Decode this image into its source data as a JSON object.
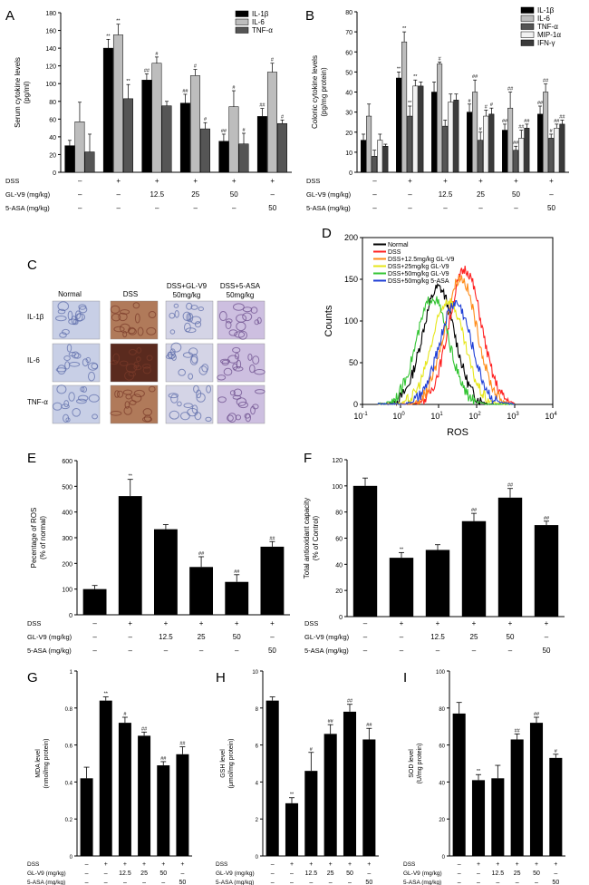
{
  "colors": {
    "black": "#000000",
    "white": "#ffffff",
    "bar_IL1b": "#000000",
    "bar_IL6": "#bdbdbd",
    "bar_TNF": "#555555",
    "bar_MIP": "#f2f2f2",
    "bar_IFN": "#3a3a3a",
    "flow_normal": "#000000",
    "flow_dss": "#ff2020",
    "flow_gl125": "#ff8c1a",
    "flow_gl25": "#e6e619",
    "flow_gl50": "#33c433",
    "flow_asa": "#1f3fd6",
    "ihc_stain_blue": "#5a6aa8",
    "ihc_stain_brown": "#7a3a2a",
    "ihc_stain_purple": "#6a4a8a"
  },
  "treatment_table": {
    "row_labels": [
      "DSS",
      "GL-V9 (mg/kg)",
      "5-ASA (mg/kg)"
    ],
    "dss": [
      "–",
      "+",
      "+",
      "+",
      "+",
      "+"
    ],
    "glv9": [
      "–",
      "–",
      "12.5",
      "25",
      "50",
      "–"
    ],
    "asa": [
      "–",
      "–",
      "–",
      "–",
      "–",
      "50"
    ]
  },
  "chart_data": [
    {
      "id": "A",
      "type": "bar",
      "ylabel": "Serum cytokine levels (pg/ml)",
      "ylim": [
        0,
        180
      ],
      "yticks": [
        0,
        20,
        40,
        60,
        80,
        100,
        120,
        140,
        160,
        180
      ],
      "categories": [
        "Normal",
        "DSS",
        "GL-V9 12.5",
        "GL-V9 25",
        "GL-V9 50",
        "5-ASA 50"
      ],
      "series": [
        {
          "name": "IL-1β",
          "color": "#000000",
          "values": [
            30,
            140,
            104,
            78,
            35,
            63
          ],
          "errors": [
            6,
            10,
            7,
            10,
            8,
            9
          ],
          "sig": [
            "",
            "**",
            "##",
            "##",
            "##",
            "##"
          ]
        },
        {
          "name": "IL-6",
          "color": "#bdbdbd",
          "values": [
            57,
            155,
            123,
            109,
            74,
            113
          ],
          "errors": [
            22,
            12,
            7,
            7,
            18,
            10
          ],
          "sig": [
            "",
            "**",
            "#",
            "#",
            "#",
            "#"
          ]
        },
        {
          "name": "TNF-α",
          "color": "#555555",
          "values": [
            23,
            83,
            75,
            49,
            32,
            55
          ],
          "errors": [
            20,
            16,
            5,
            7,
            12,
            4
          ],
          "sig": [
            "",
            "**",
            "",
            "#",
            "#",
            "#"
          ]
        }
      ]
    },
    {
      "id": "B",
      "type": "bar",
      "ylabel": "Colonic cytokine levels (pg/mg protein)",
      "ylim": [
        0,
        80
      ],
      "yticks": [
        0,
        10,
        20,
        30,
        40,
        50,
        60,
        70,
        80
      ],
      "categories": [
        "Normal",
        "DSS",
        "GL-V9 12.5",
        "GL-V9 25",
        "GL-V9 50",
        "5-ASA 50"
      ],
      "series": [
        {
          "name": "IL-1β",
          "color": "#000000",
          "values": [
            16,
            47,
            40,
            30,
            21,
            29
          ],
          "errors": [
            3,
            3,
            5,
            4,
            3,
            4
          ],
          "sig": [
            "",
            "**",
            "",
            "#",
            "##",
            "##"
          ]
        },
        {
          "name": "IL-6",
          "color": "#bdbdbd",
          "values": [
            28,
            65,
            54,
            40,
            32,
            40
          ],
          "errors": [
            6,
            5,
            1,
            6,
            8,
            4
          ],
          "sig": [
            "",
            "**",
            "#",
            "##",
            "##",
            "##"
          ]
        },
        {
          "name": "TNF-α",
          "color": "#555555",
          "values": [
            8,
            28,
            23,
            16,
            11,
            17
          ],
          "errors": [
            3,
            5,
            3,
            4,
            2,
            2
          ],
          "sig": [
            "",
            "**",
            "",
            "#",
            "##",
            "#"
          ]
        },
        {
          "name": "MIP-1α",
          "color": "#f2f2f2",
          "values": [
            16,
            43,
            35,
            28,
            17,
            22
          ],
          "errors": [
            3,
            3,
            4,
            3,
            4,
            2
          ],
          "sig": [
            "",
            "**",
            "",
            "#",
            "##",
            "##"
          ]
        },
        {
          "name": "IFN-γ",
          "color": "#3a3a3a",
          "values": [
            13,
            43,
            36,
            29,
            22,
            24
          ],
          "errors": [
            1,
            2,
            3,
            3,
            2,
            2
          ],
          "sig": [
            "",
            "",
            "",
            "#",
            "##",
            "##"
          ]
        }
      ]
    },
    {
      "id": "D",
      "type": "line",
      "xlabel": "ROS",
      "ylabel": "Counts",
      "xscale": "log",
      "xlim": [
        0.1,
        10000
      ],
      "xticks_exp": [
        "-1",
        "0",
        "1",
        "2",
        "3",
        "4"
      ],
      "ylim": [
        0,
        200
      ],
      "yticks": [
        0,
        50,
        100,
        150,
        200
      ],
      "series": [
        {
          "name": "Normal",
          "color": "#000000",
          "peak_x": 10,
          "peak_y": 140
        },
        {
          "name": "DSS",
          "color": "#ff2020",
          "peak_x": 50,
          "peak_y": 162
        },
        {
          "name": "DSS+12.5mg/kg GL-V9",
          "color": "#ff8c1a",
          "peak_x": 38,
          "peak_y": 152
        },
        {
          "name": "DSS+25mg/kg GL-V9",
          "color": "#e6e619",
          "peak_x": 18,
          "peak_y": 125
        },
        {
          "name": "DSS+50mg/kg GL-V9",
          "color": "#33c433",
          "peak_x": 7,
          "peak_y": 128
        },
        {
          "name": "DSS+50mg/kg 5-ASA",
          "color": "#1f3fd6",
          "peak_x": 28,
          "peak_y": 122
        }
      ]
    },
    {
      "id": "E",
      "type": "bar",
      "ylabel": "Pecentage of ROS (% of normal)",
      "ylim": [
        0,
        600
      ],
      "yticks": [
        0,
        100,
        200,
        300,
        400,
        500,
        600
      ],
      "categories": [
        "Normal",
        "DSS",
        "GL-V9 12.5",
        "GL-V9 25",
        "GL-V9 50",
        "5-ASA 50"
      ],
      "values": [
        100,
        462,
        333,
        186,
        128,
        265
      ],
      "errors": [
        14,
        65,
        18,
        40,
        28,
        20
      ],
      "sig": [
        "",
        "**",
        "",
        "##",
        "##",
        "##"
      ]
    },
    {
      "id": "F",
      "type": "bar",
      "ylabel": "Total antioxidant capacity (% of Control)",
      "ylim": [
        0,
        120
      ],
      "yticks": [
        0,
        20,
        40,
        60,
        80,
        100,
        120
      ],
      "categories": [
        "Normal",
        "DSS",
        "GL-V9 12.5",
        "GL-V9 25",
        "GL-V9 50",
        "5-ASA 50"
      ],
      "values": [
        100,
        45,
        51,
        73,
        91,
        70
      ],
      "errors": [
        6,
        4,
        4,
        6,
        7,
        3
      ],
      "sig": [
        "",
        "**",
        "",
        "##",
        "##",
        "##"
      ]
    },
    {
      "id": "G",
      "type": "bar",
      "ylabel": "MDA level (nmol/mg protein)",
      "ylim": [
        0,
        1.0
      ],
      "yticks": [
        0,
        0.2,
        0.4,
        0.6,
        0.8,
        1.0
      ],
      "categories": [
        "Normal",
        "DSS",
        "GL-V9 12.5",
        "GL-V9 25",
        "GL-V9 50",
        "5-ASA 50"
      ],
      "values": [
        0.42,
        0.84,
        0.72,
        0.65,
        0.49,
        0.55
      ],
      "errors": [
        0.06,
        0.02,
        0.03,
        0.02,
        0.02,
        0.04
      ],
      "sig": [
        "",
        "**",
        "#",
        "##",
        "##",
        "##"
      ]
    },
    {
      "id": "H",
      "type": "bar",
      "ylabel": "GSH level (μmol/mg protein)",
      "ylim": [
        0,
        10
      ],
      "yticks": [
        0,
        2,
        4,
        6,
        8,
        10
      ],
      "categories": [
        "Normal",
        "DSS",
        "GL-V9 12.5",
        "GL-V9 25",
        "GL-V9 50",
        "5-ASA 50"
      ],
      "values": [
        8.4,
        2.85,
        4.6,
        6.6,
        7.8,
        6.3
      ],
      "errors": [
        0.2,
        0.3,
        1.0,
        0.5,
        0.4,
        0.6
      ],
      "sig": [
        "",
        "**",
        "#",
        "##",
        "##",
        "##"
      ]
    },
    {
      "id": "I",
      "type": "bar",
      "ylabel": "SOD level (U/mg protein)",
      "ylim": [
        0,
        100
      ],
      "yticks": [
        0,
        20,
        40,
        60,
        80,
        100
      ],
      "categories": [
        "Normal",
        "DSS",
        "GL-V9 12.5",
        "GL-V9 25",
        "GL-V9 50",
        "5-ASA 50"
      ],
      "values": [
        77,
        41,
        42,
        63,
        72,
        53
      ],
      "errors": [
        6,
        3,
        7,
        3,
        3,
        2
      ],
      "sig": [
        "",
        "**",
        "",
        "##",
        "##",
        "#"
      ]
    }
  ],
  "panel_c": {
    "letter": "C",
    "columns": [
      "Normal",
      "DSS",
      "DSS+GL-V9",
      "DSS+5-ASA"
    ],
    "column_sub": [
      "",
      "",
      "50mg/kg",
      "50mg/kg"
    ],
    "rows": [
      "IL-1β",
      "IL-6",
      "TNF-α"
    ]
  }
}
